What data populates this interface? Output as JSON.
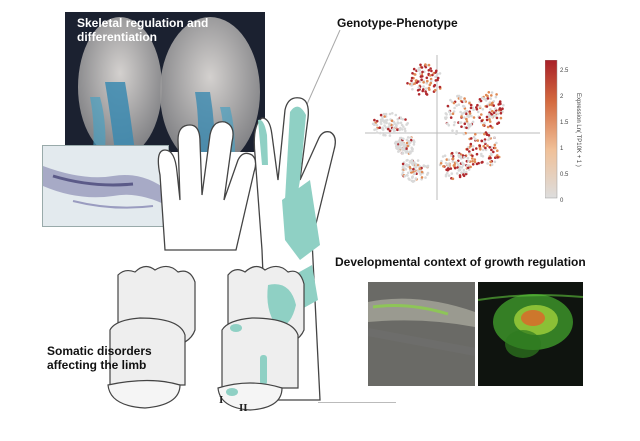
{
  "titles": {
    "skeletal": "Skeletal regulation and differentiation",
    "genotype": "Genotype-Phenotype",
    "developmental": "Developmental context of growth regulation",
    "somatic": "Somatic disorders affecting the limb"
  },
  "numerals": {
    "first": "I",
    "second": "II"
  },
  "colorbar": {
    "title": "Expression Ln( TP10K + 1 )",
    "ticks": [
      "2.5",
      "2",
      "1.5",
      "1",
      "0.5",
      "0"
    ]
  },
  "colors": {
    "teal": "#8fd0c4",
    "limb_fill": "#eeeeee",
    "outline": "#444444",
    "expression_high": "#b0282d",
    "expression_low": "#d9d9d9",
    "fluorescence_green": "#5fc43c"
  }
}
